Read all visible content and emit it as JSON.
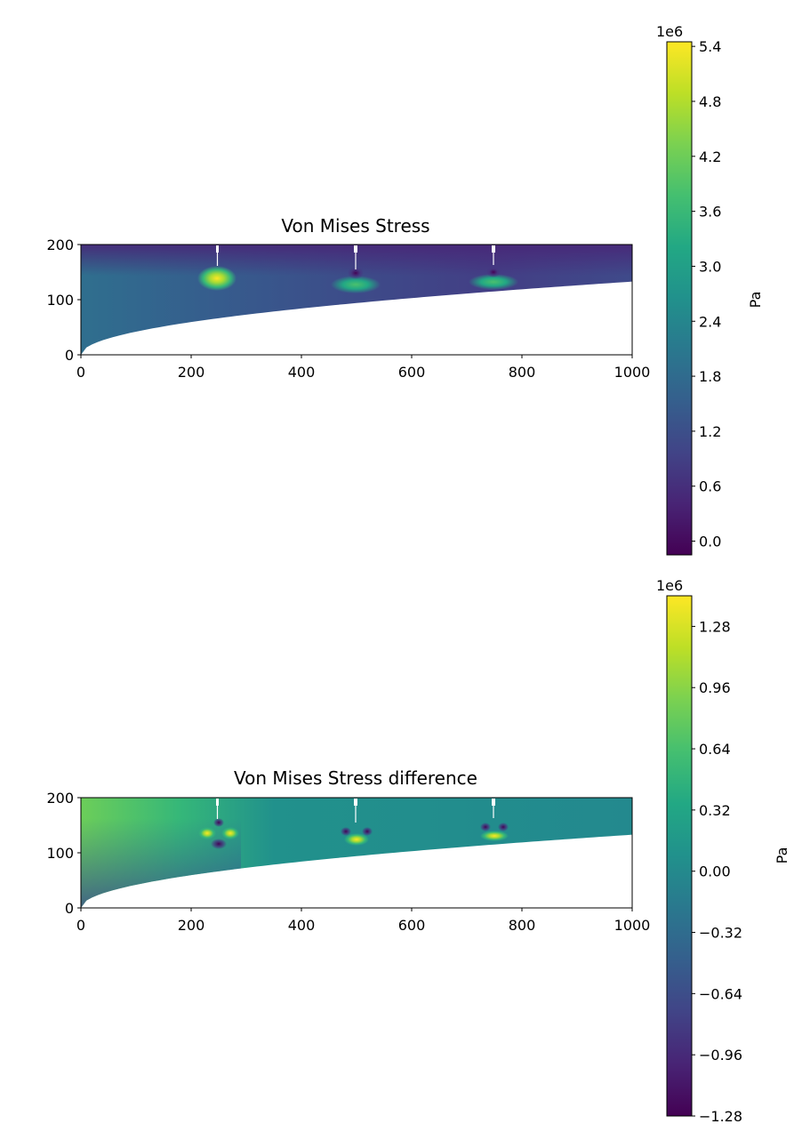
{
  "chart_data": [
    {
      "type": "heatmap",
      "title": "Von Mises Stress",
      "xlim": [
        0,
        1000
      ],
      "ylim": [
        0,
        200
      ],
      "x_ticks": [
        "0",
        "200",
        "400",
        "600",
        "800",
        "1000"
      ],
      "y_ticks": [
        "0",
        "100",
        "200"
      ],
      "supports_x": [
        250,
        500,
        750
      ],
      "colorbar": {
        "label": "Pa",
        "offset_text": "1e6",
        "range": [
          -0.15,
          5.45
        ],
        "ticks": [
          "0.0",
          "0.6",
          "1.2",
          "1.8",
          "2.4",
          "3.0",
          "3.6",
          "4.2",
          "4.8",
          "5.4"
        ],
        "tick_values": [
          0.0,
          0.6,
          1.2,
          1.8,
          2.4,
          3.0,
          3.6,
          4.2,
          4.8,
          5.4
        ]
      }
    },
    {
      "type": "heatmap",
      "title": "Von Mises Stress difference",
      "xlim": [
        0,
        1000
      ],
      "ylim": [
        0,
        200
      ],
      "x_ticks": [
        "0",
        "200",
        "400",
        "600",
        "800",
        "1000"
      ],
      "y_ticks": [
        "0",
        "100",
        "200"
      ],
      "supports_x": [
        250,
        500,
        750
      ],
      "colorbar": {
        "label": "Pa",
        "offset_text": "1e6",
        "range": [
          -1.28,
          1.44
        ],
        "ticks": [
          "1.28",
          "0.96",
          "0.64",
          "0.32",
          "0.00",
          "−0.32",
          "−0.64",
          "−0.96",
          "−1.28"
        ],
        "tick_values": [
          1.28,
          0.96,
          0.64,
          0.32,
          0.0,
          -0.32,
          -0.64,
          -0.96,
          -1.28
        ]
      }
    }
  ]
}
